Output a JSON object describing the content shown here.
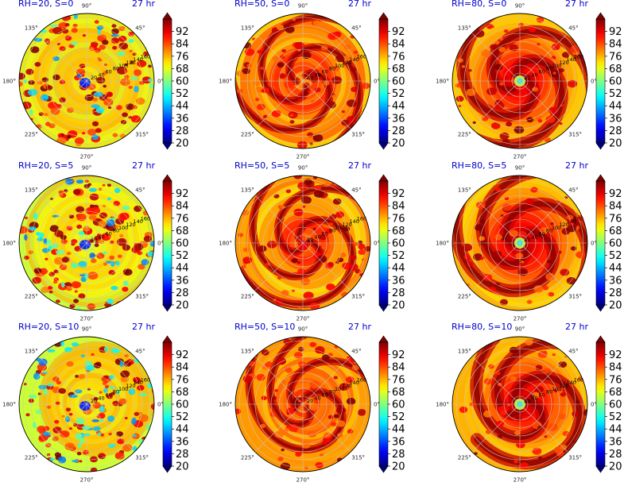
{
  "chart_data": {
    "type": "heatmap",
    "projection": "polar",
    "layout": {
      "rows": 3,
      "cols": 3
    },
    "time_label": "27 hr",
    "angular_tick_labels": [
      "0°",
      "45°",
      "90°",
      "135°",
      "180°",
      "225°",
      "270°",
      "315°"
    ],
    "radial_tick_labels": [
      "20",
      "40",
      "60",
      "80",
      "100",
      "120",
      "140",
      "160"
    ],
    "radial_range": [
      0,
      170
    ],
    "colorbar": {
      "colormap": "jet",
      "range": [
        20,
        100
      ],
      "extend": "both",
      "tick_labels": [
        "92",
        "84",
        "76",
        "68",
        "60",
        "52",
        "44",
        "36",
        "28",
        "20"
      ]
    },
    "panels": [
      {
        "title": "RH=20, S=0",
        "time": "27 hr",
        "rh": 20,
        "shear": 0,
        "show_radial_labels": true
      },
      {
        "title": "RH=50, S=0",
        "time": "27 hr",
        "rh": 50,
        "shear": 0,
        "show_radial_labels": true
      },
      {
        "title": "RH=80, S=0",
        "time": "27 hr",
        "rh": 80,
        "shear": 0,
        "show_radial_labels": true
      },
      {
        "title": "RH=20, S=5",
        "time": "27 hr",
        "rh": 20,
        "shear": 5,
        "show_radial_labels": true
      },
      {
        "title": "RH=50, S=5",
        "time": "27 hr",
        "rh": 50,
        "shear": 5,
        "show_radial_labels": true
      },
      {
        "title": "RH=80, S=5",
        "time": "27 hr",
        "rh": 80,
        "shear": 5,
        "show_radial_labels": true
      },
      {
        "title": "RH=20, S=10",
        "time": "27 hr",
        "rh": 20,
        "shear": 10,
        "show_radial_labels": true
      },
      {
        "title": "RH=50, S=10",
        "time": "27 hr",
        "rh": 50,
        "shear": 10,
        "show_radial_labels": true
      },
      {
        "title": "RH=80, S=10",
        "time": "27 hr",
        "rh": 80,
        "shear": 10,
        "show_radial_labels": true
      }
    ]
  }
}
